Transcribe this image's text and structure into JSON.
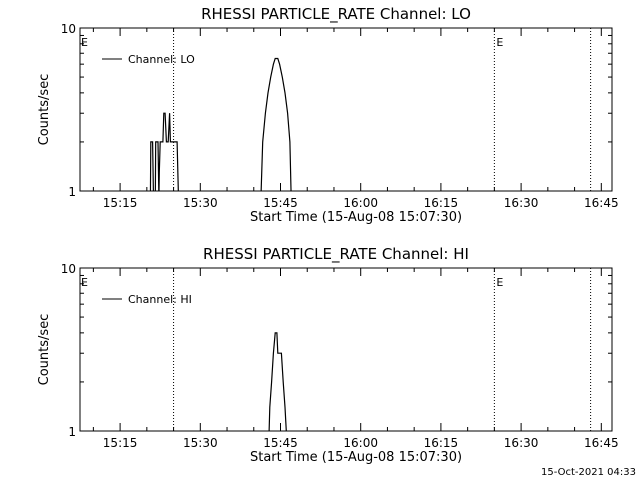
{
  "chart_data": [
    {
      "type": "line",
      "title": "RHESSI PARTICLE_RATE Channel: LO",
      "xlabel": "Start Time (15-Aug-08 15:07:30)",
      "ylabel": "Counts/sec",
      "y_scale": "log",
      "ylim": [
        1,
        10
      ],
      "ytick_labels": [
        "1",
        "10"
      ],
      "xlim": [
        "15:07:30",
        "16:47:00"
      ],
      "xtick_labels": [
        "15:15",
        "15:30",
        "15:45",
        "16:00",
        "16:15",
        "16:30",
        "16:45"
      ],
      "legend": {
        "placement": "top-left",
        "entries": [
          "Channel: LO"
        ]
      },
      "event_markers": [
        {
          "time": "15:25:00",
          "label": ""
        },
        {
          "time": "16:25:00",
          "label": "E"
        },
        {
          "time": "16:43:00",
          "label": ""
        }
      ],
      "start_marker_label": "E",
      "series": [
        {
          "name": "Channel: LO",
          "points": [
            [
              "15:20:40",
              0.9
            ],
            [
              "15:20:45",
              2.0
            ],
            [
              "15:21:05",
              2.0
            ],
            [
              "15:21:15",
              0.9
            ],
            [
              "15:21:35",
              0.9
            ],
            [
              "15:21:40",
              2.0
            ],
            [
              "15:22:05",
              2.0
            ],
            [
              "15:22:15",
              0.9
            ],
            [
              "15:22:20",
              1.3
            ],
            [
              "15:22:30",
              2.0
            ],
            [
              "15:23:00",
              2.0
            ],
            [
              "15:23:10",
              3.0
            ],
            [
              "15:23:25",
              3.0
            ],
            [
              "15:23:40",
              2.0
            ],
            [
              "15:24:00",
              2.0
            ],
            [
              "15:24:15",
              3.0
            ],
            [
              "15:24:25",
              2.0
            ],
            [
              "15:25:40",
              2.0
            ],
            [
              "15:25:55",
              0.9
            ],
            [
              "15:41:20",
              0.9
            ],
            [
              "15:41:40",
              2.0
            ],
            [
              "15:42:10",
              3.0
            ],
            [
              "15:42:40",
              4.0
            ],
            [
              "15:43:10",
              5.0
            ],
            [
              "15:43:40",
              6.0
            ],
            [
              "15:44:00",
              6.5
            ],
            [
              "15:44:30",
              6.5
            ],
            [
              "15:44:50",
              6.0
            ],
            [
              "15:45:20",
              5.0
            ],
            [
              "15:45:50",
              4.0
            ],
            [
              "15:46:20",
              3.0
            ],
            [
              "15:46:45",
              2.0
            ],
            [
              "15:47:00",
              0.9
            ]
          ]
        }
      ]
    },
    {
      "type": "line",
      "title": "RHESSI PARTICLE_RATE Channel: HI",
      "xlabel": "Start Time (15-Aug-08 15:07:30)",
      "ylabel": "Counts/sec",
      "y_scale": "log",
      "ylim": [
        1,
        10
      ],
      "ytick_labels": [
        "1",
        "10"
      ],
      "xlim": [
        "15:07:30",
        "16:47:00"
      ],
      "xtick_labels": [
        "15:15",
        "15:30",
        "15:45",
        "16:00",
        "16:15",
        "16:30",
        "16:45"
      ],
      "legend": {
        "placement": "top-left",
        "entries": [
          "Channel: HI"
        ]
      },
      "event_markers": [
        {
          "time": "15:25:00",
          "label": ""
        },
        {
          "time": "16:25:00",
          "label": "E"
        },
        {
          "time": "16:43:00",
          "label": ""
        }
      ],
      "start_marker_label": "E",
      "series": [
        {
          "name": "Channel: HI",
          "points": [
            [
              "15:42:50",
              0.9
            ],
            [
              "15:43:00",
              1.4
            ],
            [
              "15:43:20",
              2.0
            ],
            [
              "15:43:40",
              3.0
            ],
            [
              "15:44:00",
              4.0
            ],
            [
              "15:44:20",
              4.0
            ],
            [
              "15:44:30",
              3.0
            ],
            [
              "15:45:10",
              3.0
            ],
            [
              "15:45:30",
              2.0
            ],
            [
              "15:45:50",
              1.4
            ],
            [
              "15:46:10",
              0.9
            ]
          ]
        }
      ]
    }
  ],
  "footer": {
    "timestamp": "15-Oct-2021 04:33"
  }
}
